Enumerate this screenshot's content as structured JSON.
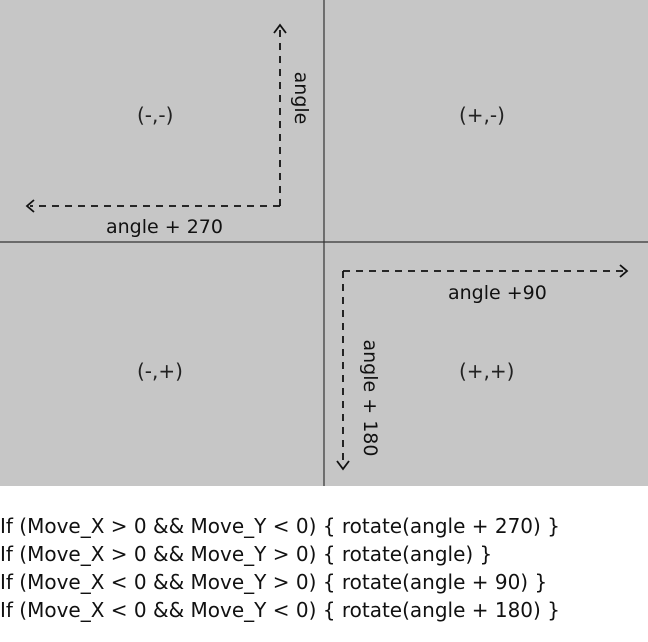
{
  "diagram": {
    "quadrants": {
      "top_left": "(-,-)",
      "top_right": "(+,-)",
      "bottom_left": "(-,+)",
      "bottom_right": "(+,+)"
    },
    "arrow_labels": {
      "top_left_vertical": "angle",
      "top_left_horizontal": "angle + 270",
      "bottom_right_horizontal": "angle +90",
      "bottom_right_vertical": "angle + 180"
    },
    "colors": {
      "background": "#c6c6c6",
      "axis": "#333333",
      "dashed_arrow": "#111111"
    }
  },
  "code": {
    "lines": [
      "If (Move_X > 0 && Move_Y < 0) { rotate(angle + 270) }",
      "If (Move_X > 0 && Move_Y > 0) { rotate(angle) }",
      "If (Move_X < 0 && Move_Y > 0) { rotate(angle + 90) }",
      "If (Move_X < 0 && Move_Y < 0) { rotate(angle + 180) }"
    ]
  }
}
